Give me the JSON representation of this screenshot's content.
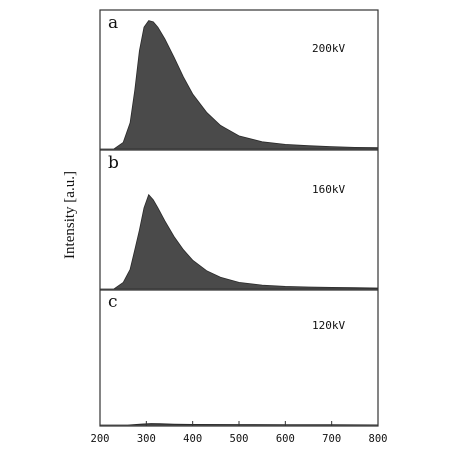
{
  "chart_data": {
    "type": "area",
    "ylabel": "Intensity [a.u.]",
    "xlabel": "",
    "xlim": [
      200,
      800
    ],
    "xticks": [
      "200",
      "300",
      "400",
      "500",
      "600",
      "700",
      "800"
    ],
    "grid": false,
    "panels": [
      {
        "letter": "a",
        "label": "200kV",
        "ylim": [
          0,
          1.0
        ],
        "x": [
          200,
          230,
          250,
          265,
          275,
          285,
          295,
          305,
          315,
          325,
          340,
          360,
          380,
          400,
          430,
          460,
          500,
          550,
          600,
          650,
          700,
          750,
          800
        ],
        "y": [
          0,
          0.0,
          0.05,
          0.2,
          0.45,
          0.75,
          0.93,
          0.98,
          0.97,
          0.93,
          0.84,
          0.7,
          0.55,
          0.42,
          0.28,
          0.18,
          0.1,
          0.055,
          0.035,
          0.025,
          0.018,
          0.012,
          0.01
        ]
      },
      {
        "letter": "b",
        "label": "160kV",
        "ylim": [
          0,
          1.0
        ],
        "x": [
          200,
          230,
          250,
          265,
          275,
          285,
          295,
          305,
          315,
          325,
          340,
          360,
          380,
          400,
          430,
          460,
          500,
          550,
          600,
          650,
          700,
          750,
          800
        ],
        "y": [
          0,
          0.0,
          0.05,
          0.15,
          0.3,
          0.45,
          0.62,
          0.72,
          0.68,
          0.62,
          0.52,
          0.4,
          0.3,
          0.22,
          0.14,
          0.09,
          0.05,
          0.03,
          0.02,
          0.015,
          0.012,
          0.01,
          0.008
        ]
      },
      {
        "letter": "c",
        "label": "120kV",
        "ylim": [
          0,
          1.0
        ],
        "x": [
          200,
          260,
          290,
          310,
          330,
          360,
          400,
          500,
          600,
          700,
          800
        ],
        "y": [
          0,
          0.0,
          0.008,
          0.012,
          0.01,
          0.007,
          0.005,
          0.004,
          0.003,
          0.002,
          0.001
        ]
      }
    ]
  }
}
